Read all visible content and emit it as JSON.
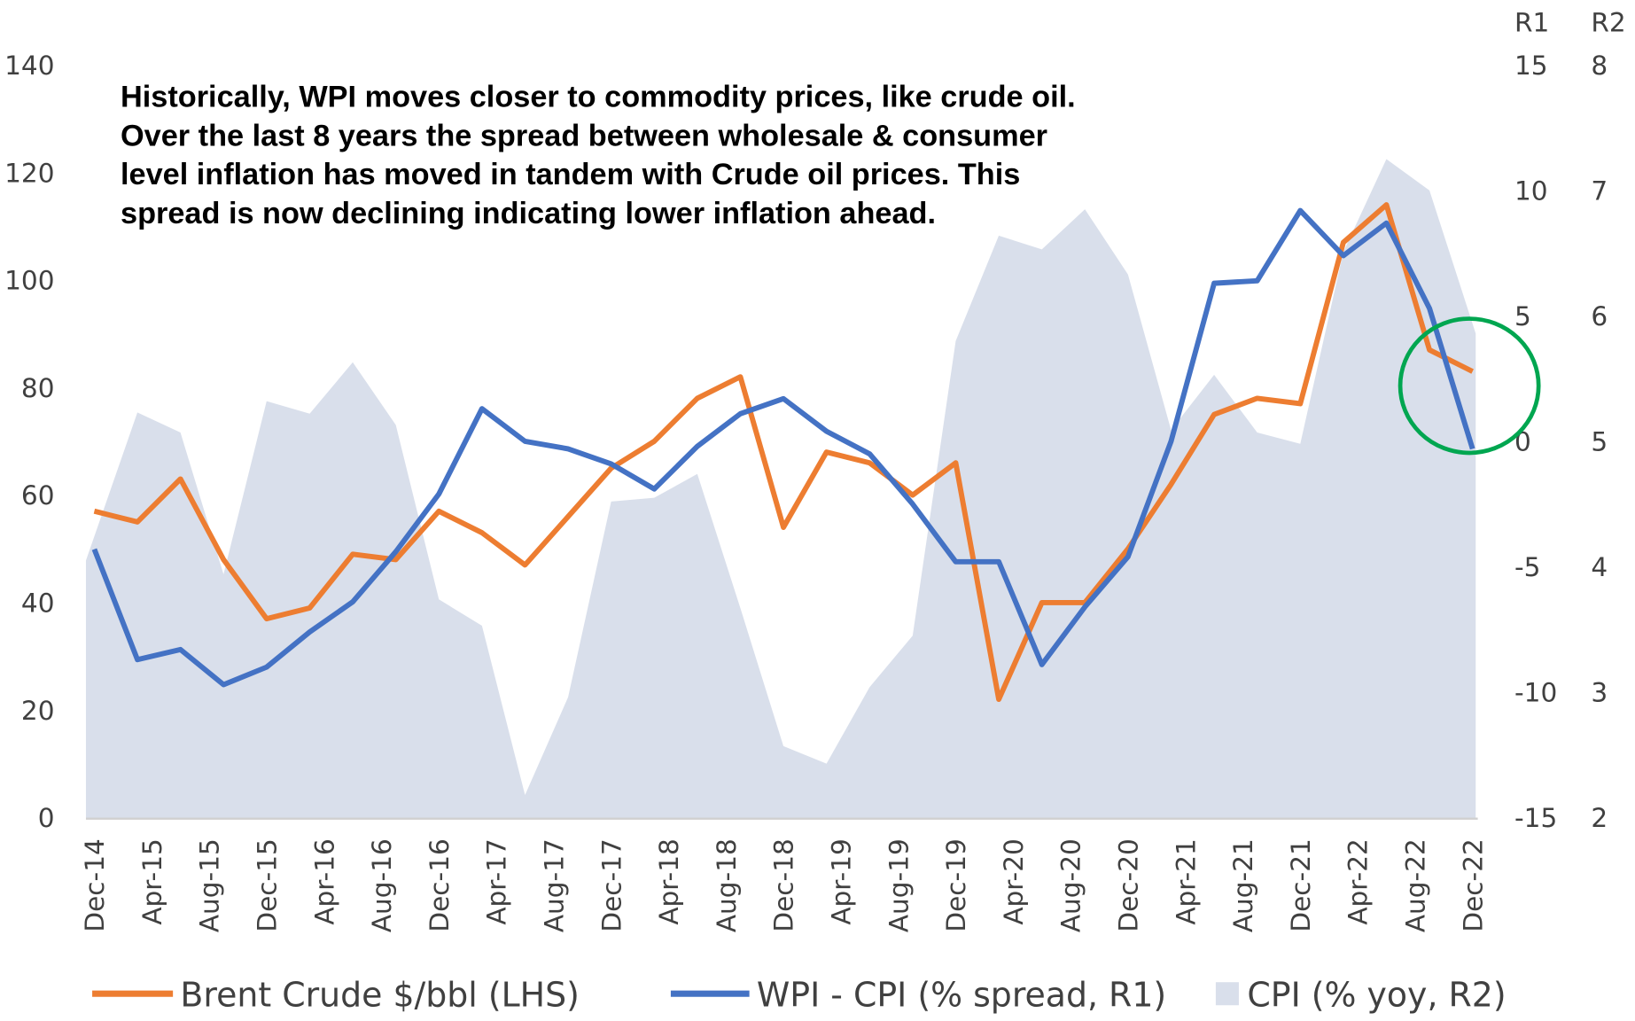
{
  "chart_data": {
    "type": "line",
    "annotation": [
      "Historically, WPI moves closer to commodity prices, like crude oil.",
      "Over the last 8 years the spread between wholesale & consumer",
      "level inflation has moved in tandem with Crude oil prices. This",
      "spread is now declining indicating lower inflation ahead."
    ],
    "x_tick_labels": [
      "Dec-14",
      "Apr-15",
      "Aug-15",
      "Dec-15",
      "Apr-16",
      "Aug-16",
      "Dec-16",
      "Apr-17",
      "Aug-17",
      "Dec-17",
      "Apr-18",
      "Aug-18",
      "Dec-18",
      "Apr-19",
      "Aug-19",
      "Dec-19",
      "Apr-20",
      "Aug-20",
      "Dec-20",
      "Apr-21",
      "Aug-21",
      "Dec-21",
      "Apr-22",
      "Aug-22",
      "Dec-22"
    ],
    "x_range": [
      "Dec-14",
      "Dec-22"
    ],
    "data_frequency": "quarterly",
    "axes": {
      "left": {
        "ylim": [
          0,
          140
        ],
        "ticks": [
          "0",
          "20",
          "40",
          "60",
          "80",
          "100",
          "120",
          "140"
        ]
      },
      "right1": {
        "header": "R1",
        "ylim": [
          -15,
          15
        ],
        "ticks": [
          "-15",
          "-10",
          "-5",
          "0",
          "5",
          "10",
          "15"
        ]
      },
      "right2": {
        "header": "R2",
        "ylim": [
          2,
          8
        ],
        "ticks": [
          "2",
          "3",
          "4",
          "5",
          "6",
          "7",
          "8"
        ]
      }
    },
    "grid": false,
    "legend_position": "bottom",
    "series": [
      {
        "name": "CPI (% yoy, R2)",
        "type": "area",
        "axis": "right2",
        "color": "#D9DFEB",
        "values": [
          4.05,
          5.23,
          5.07,
          3.94,
          5.32,
          5.22,
          5.63,
          5.13,
          3.74,
          3.53,
          2.18,
          2.96,
          4.52,
          4.55,
          4.74,
          3.67,
          2.57,
          2.43,
          3.04,
          3.45,
          5.8,
          6.64,
          6.53,
          6.85,
          6.33,
          5.09,
          5.53,
          5.07,
          4.98,
          6.51,
          7.25,
          7.0,
          5.86
        ]
      },
      {
        "name": "Brent Crude $/bbl (LHS)",
        "type": "line",
        "axis": "left",
        "color": "#ED7D31",
        "values": [
          57,
          55,
          63,
          48,
          37,
          39,
          49,
          48,
          57,
          53,
          47,
          56,
          65,
          70,
          78,
          82,
          54,
          68,
          66,
          60,
          66,
          22,
          40,
          40,
          50,
          62,
          75,
          78,
          77,
          107,
          114,
          87,
          83
        ]
      },
      {
        "name": "WPI - CPI (% spread, R1)",
        "type": "line",
        "axis": "right1",
        "color": "#4472C4",
        "values": [
          -4.3,
          -8.7,
          -8.3,
          -9.7,
          -9.0,
          -7.6,
          -6.4,
          -4.4,
          -2.1,
          1.3,
          0.0,
          -0.3,
          -0.9,
          -1.9,
          -0.2,
          1.1,
          1.7,
          0.4,
          -0.5,
          -2.5,
          -4.8,
          -4.8,
          -8.9,
          -6.6,
          -4.6,
          0.0,
          6.3,
          6.4,
          9.2,
          7.4,
          8.7,
          5.3,
          -0.3
        ]
      }
    ],
    "highlight": {
      "shape": "circle",
      "color": "#00A650",
      "around": "Dec-22"
    }
  }
}
